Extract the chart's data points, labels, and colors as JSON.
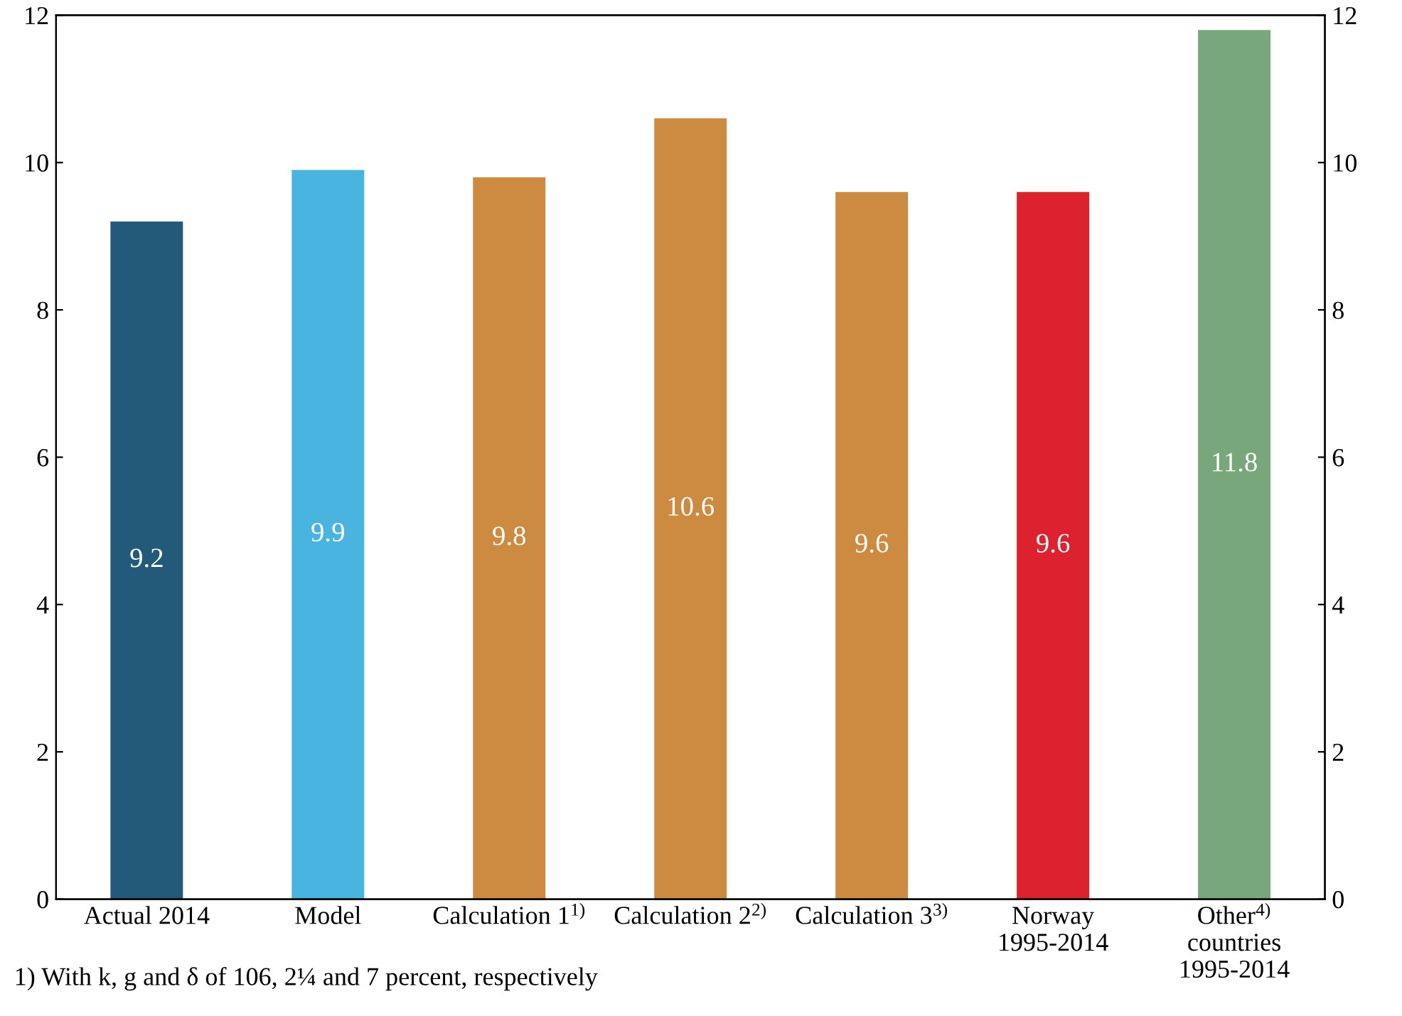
{
  "chart_data": {
    "type": "bar",
    "categories": [
      "Actual 2014",
      "Model",
      "Calculation 1$^{1)}$",
      "Calculation 2$^{2)}$",
      "Calculation 3$^{3)}$",
      "Norway\n1995-2014",
      "Other$^{4)}$\ncountries\n1995-2014"
    ],
    "values": [
      9.2,
      9.9,
      9.8,
      10.6,
      9.6,
      9.6,
      11.8
    ],
    "colors": [
      "#235a7a",
      "#4ab4e0",
      "#cd8a41",
      "#cd8a41",
      "#cd8a41",
      "#de212e",
      "#78a77c"
    ],
    "ylim": [
      0,
      12
    ],
    "yticks": [
      0,
      2,
      4,
      6,
      8,
      10,
      12
    ],
    "y2lim": [
      0,
      12
    ],
    "y2ticks": [
      0,
      2,
      4,
      6,
      8,
      10,
      12
    ],
    "data_labels": true,
    "grid": false,
    "legend": false,
    "annotations": [
      "1) With k, g and δ of 106, 2¼ and 7 percent, respectively"
    ]
  }
}
